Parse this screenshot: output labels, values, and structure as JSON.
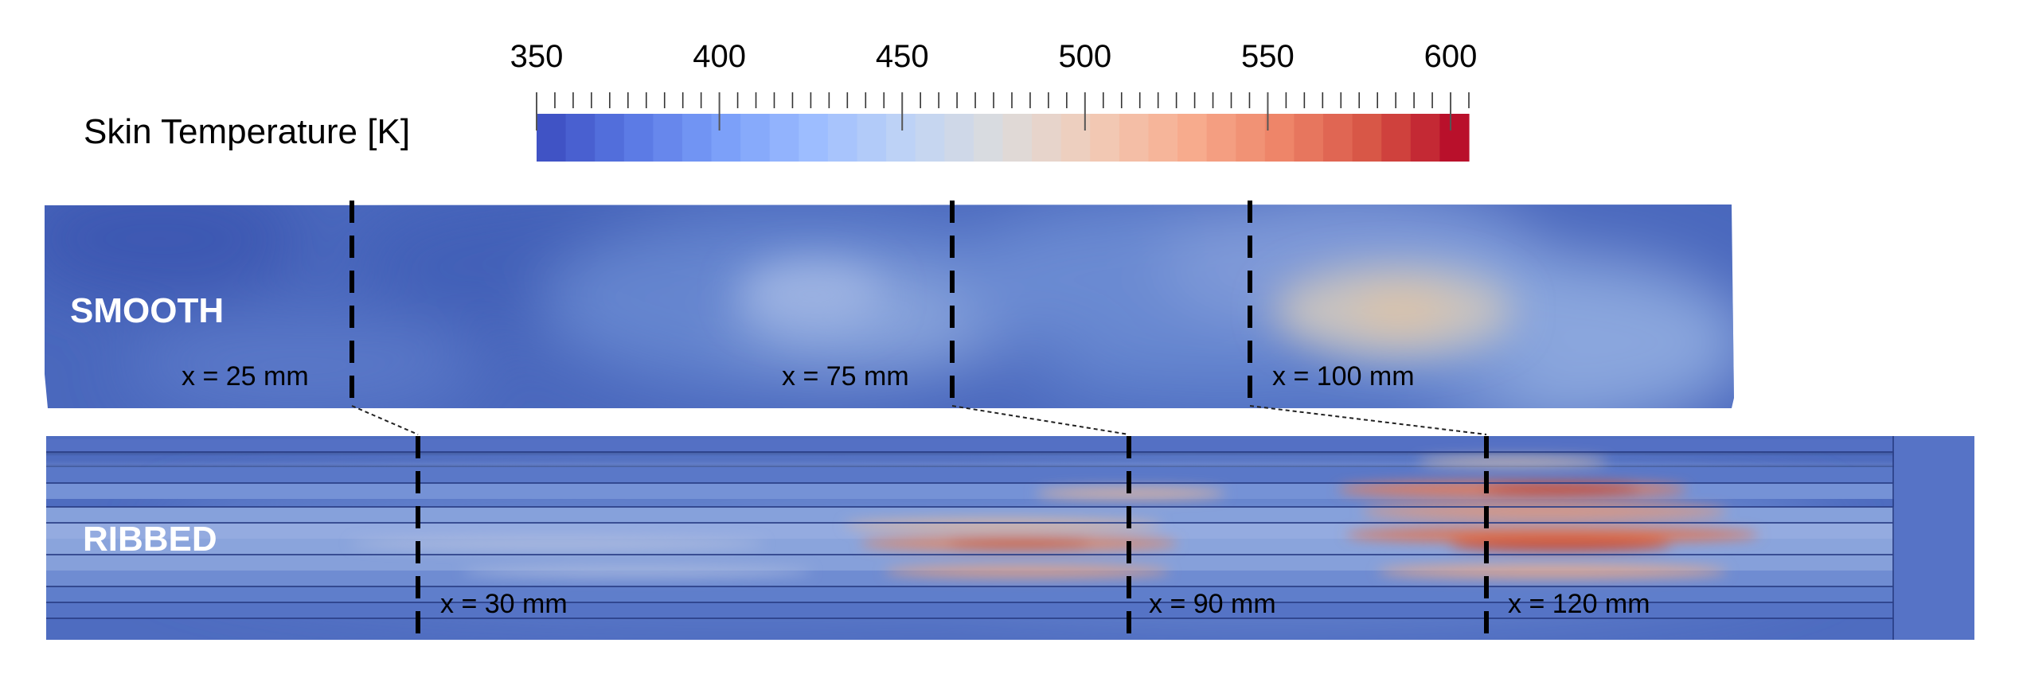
{
  "colorbar": {
    "title": "Skin Temperature [K]",
    "min": 350,
    "max": 605,
    "tick_values": [
      350,
      400,
      450,
      500,
      550,
      600
    ],
    "tick_labels": [
      "350",
      "400",
      "450",
      "500",
      "550",
      "600"
    ],
    "minor_step": 5,
    "colors": [
      "#3b4cc0",
      "#5977e3",
      "#7b9ff9",
      "#9ebeff",
      "#c0d4f5",
      "#dddcdc",
      "#f2cbb7",
      "#f7ac8e",
      "#ee8468",
      "#d65244",
      "#b40426"
    ]
  },
  "panels": {
    "smooth": {
      "label": "SMOOTH",
      "cuts": [
        {
          "label": "x = 25 mm"
        },
        {
          "label": "x = 75 mm"
        },
        {
          "label": "x = 100 mm"
        }
      ]
    },
    "ribbed": {
      "label": "RIBBED",
      "cuts": [
        {
          "label": "x = 30 mm"
        },
        {
          "label": "x = 90 mm"
        },
        {
          "label": "x = 120 mm"
        }
      ]
    }
  }
}
